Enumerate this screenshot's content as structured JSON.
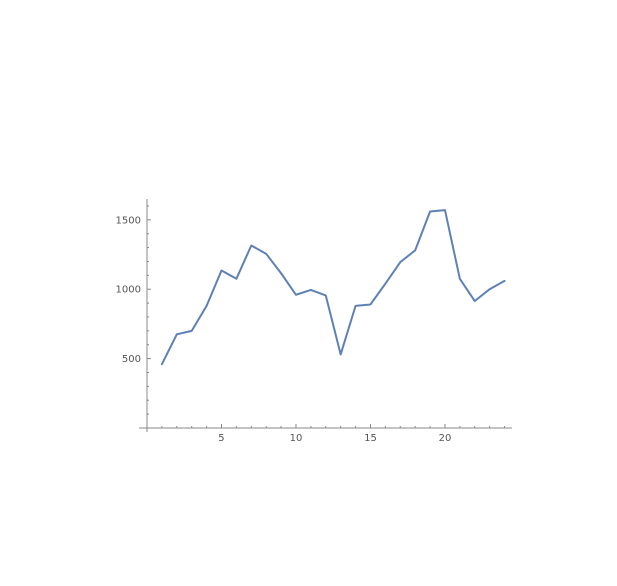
{
  "chart_data": {
    "type": "line",
    "title": "",
    "xlabel": "",
    "ylabel": "",
    "xlim": [
      0,
      24.5
    ],
    "ylim": [
      0,
      1650
    ],
    "x_ticks_major": [
      5,
      10,
      15,
      20
    ],
    "y_ticks_major": [
      500,
      1000,
      1500
    ],
    "x_tick_labels": [
      "5",
      "10",
      "15",
      "20"
    ],
    "y_tick_labels": [
      "500",
      "1000",
      "1500"
    ],
    "grid": false,
    "series": [
      {
        "color": "#5e81b5",
        "x": [
          1,
          2,
          3,
          4,
          5,
          6,
          7,
          8,
          9,
          10,
          11,
          12,
          13,
          14,
          15,
          16,
          17,
          18,
          19,
          20,
          21,
          22,
          23,
          24
        ],
        "values": [
          460,
          675,
          700,
          880,
          1135,
          1075,
          1315,
          1255,
          1115,
          960,
          995,
          955,
          530,
          880,
          890,
          1040,
          1195,
          1280,
          1560,
          1570,
          1075,
          915,
          1000,
          1060
        ]
      }
    ]
  }
}
